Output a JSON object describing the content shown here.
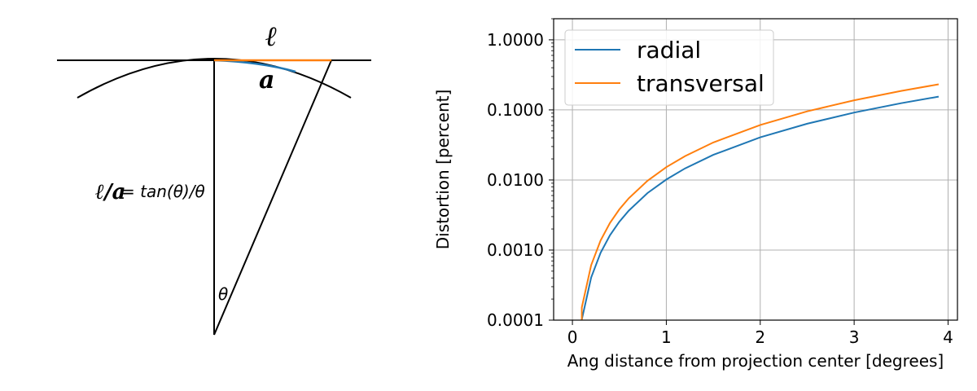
{
  "diagram": {
    "label_l": "ℓ",
    "label_a": "a",
    "ratio_label": "ℓ/a",
    "formula": "= tan(θ)/θ",
    "theta": "θ",
    "colors": {
      "line": "#000000",
      "tangent": "#ff7f0e",
      "arc": "#1f77b4"
    }
  },
  "chart_data": {
    "type": "line",
    "xlabel": "Ang distance from projection center [degrees]",
    "ylabel": "Distortion [percent]",
    "xlim": [
      -0.2,
      4.1
    ],
    "ylim": [
      0.0001,
      2
    ],
    "yscale": "log",
    "grid": true,
    "legend_position": "top-left",
    "x_ticks": [
      0,
      1,
      2,
      3,
      4
    ],
    "x_tick_labels": [
      "0",
      "1",
      "2",
      "3",
      "4"
    ],
    "y_ticks": [
      0.0001,
      0.001,
      0.01,
      0.1,
      1
    ],
    "y_tick_labels": [
      "0.0001",
      "0.0010",
      "0.0100",
      "0.1000",
      "1.0000"
    ],
    "x": [
      0.1,
      0.2,
      0.3,
      0.4,
      0.5,
      0.6,
      0.8,
      1.0,
      1.2,
      1.5,
      2.0,
      2.5,
      3.0,
      3.5,
      3.9
    ],
    "series": [
      {
        "name": "radial",
        "color": "#1f77b4",
        "values": [
          0.000102,
          0.000406,
          0.000914,
          0.001625,
          0.002538,
          0.003655,
          0.0065,
          0.010155,
          0.014626,
          0.022855,
          0.040641,
          0.063519,
          0.091505,
          0.124622,
          0.154813
        ]
      },
      {
        "name": "transversal",
        "color": "#ff7f0e",
        "values": [
          0.000152,
          0.000609,
          0.001371,
          0.002437,
          0.003808,
          0.005483,
          0.009748,
          0.015234,
          0.021934,
          0.034274,
          0.060954,
          0.095234,
          0.137161,
          0.186704,
          0.231851
        ]
      }
    ]
  }
}
